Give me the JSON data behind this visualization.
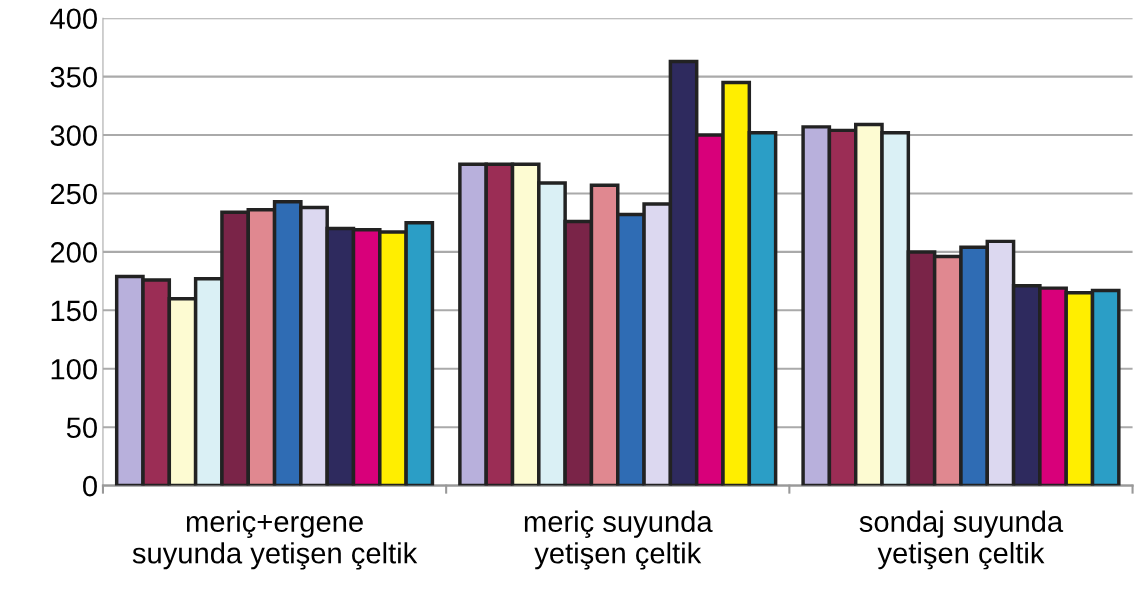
{
  "chart_data": {
    "type": "bar",
    "categories": [
      "meriç+ergene\nsuyunda yetişen çeltik",
      "meriç suyunda\nyetişen çeltik",
      "sondaj suyunda\nyetişen çeltik"
    ],
    "series": [
      {
        "color": "#b8b0dc",
        "values": [
          179,
          275,
          307
        ]
      },
      {
        "color": "#9b2d55",
        "values": [
          176,
          275,
          304
        ]
      },
      {
        "color": "#fdfbd2",
        "values": [
          160,
          275,
          309
        ]
      },
      {
        "color": "#daf0f5",
        "values": [
          177,
          259,
          302
        ]
      },
      {
        "color": "#7a2448",
        "values": [
          234,
          226,
          200
        ]
      },
      {
        "color": "#e08890",
        "values": [
          236,
          257,
          196
        ]
      },
      {
        "color": "#2f6cb4",
        "values": [
          243,
          232,
          204
        ]
      },
      {
        "color": "#dcd8f0",
        "values": [
          238,
          241,
          209
        ]
      },
      {
        "color": "#2e2a5e",
        "values": [
          220,
          363,
          171
        ]
      },
      {
        "color": "#d8007a",
        "values": [
          219,
          300,
          169
        ]
      },
      {
        "color": "#ffee00",
        "values": [
          217,
          345,
          165
        ]
      },
      {
        "color": "#2b9ec6",
        "values": [
          225,
          302,
          167
        ]
      }
    ],
    "ylim": [
      0,
      400
    ],
    "yticks": [
      0,
      50,
      100,
      150,
      200,
      250,
      300,
      350,
      400
    ],
    "grid": "y"
  }
}
